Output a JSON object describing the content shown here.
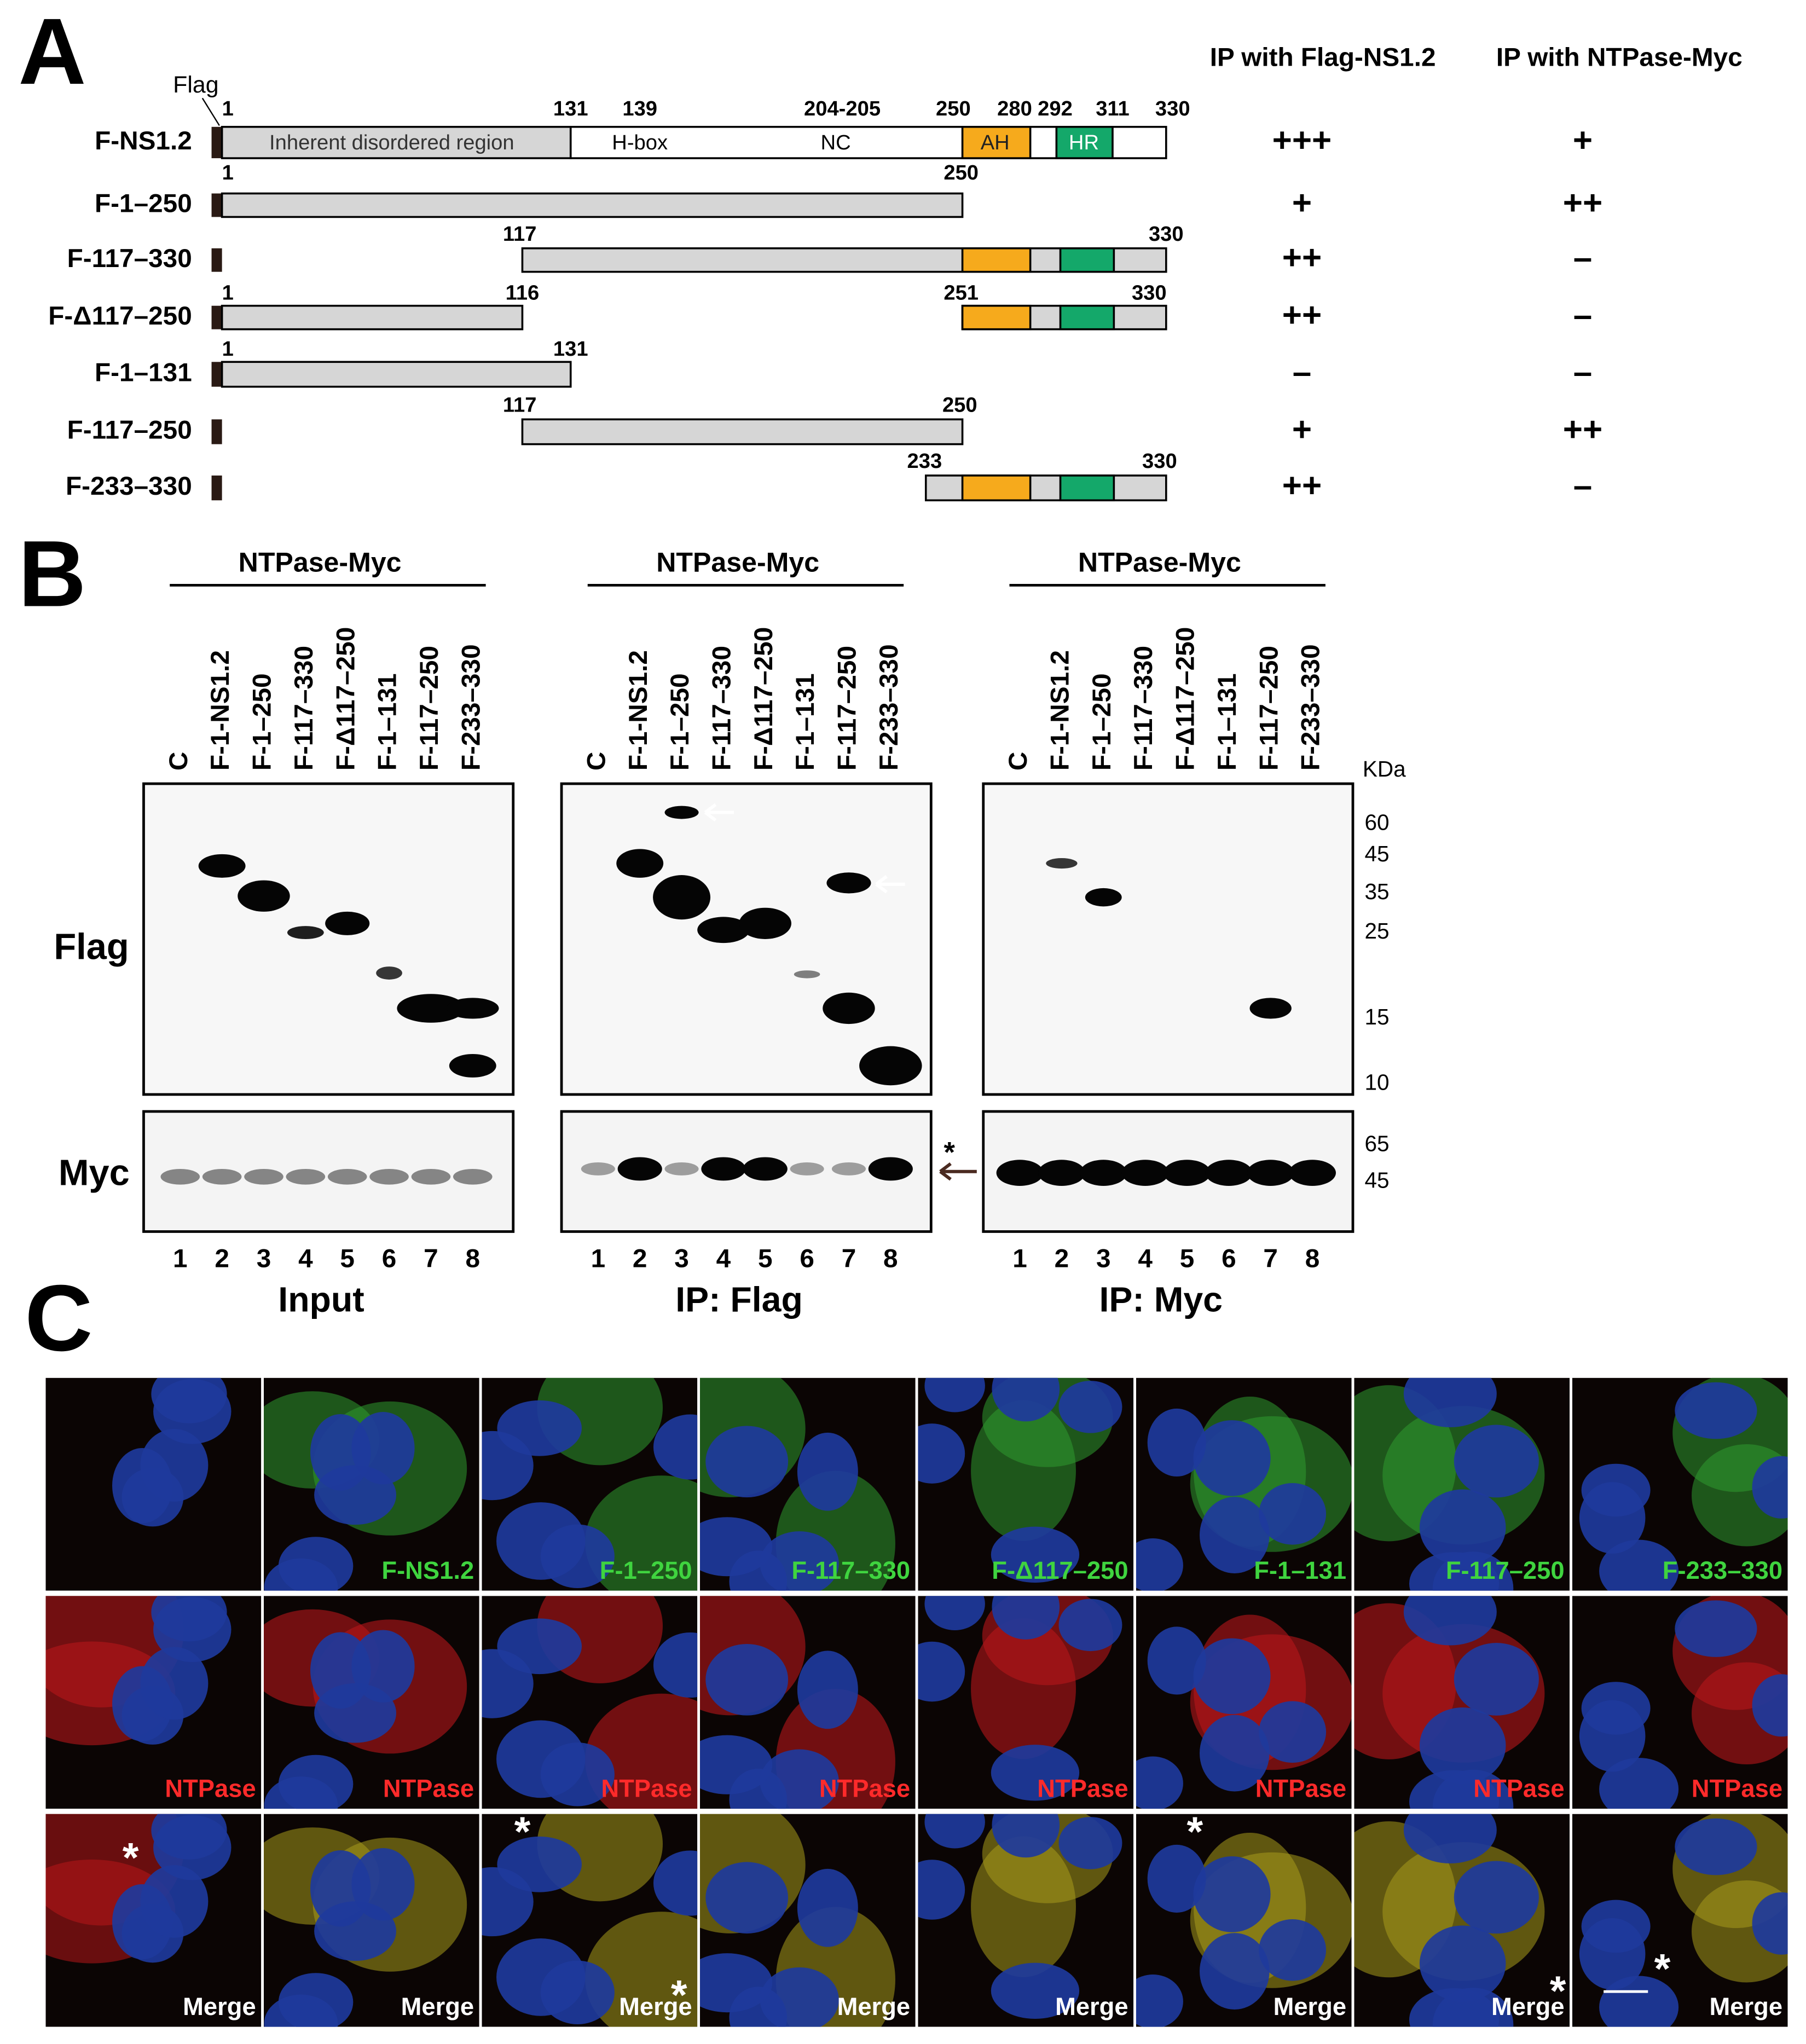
{
  "panel_a": {
    "label": "A",
    "flag_label": "Flag",
    "columns": [
      "IP with Flag-NS1.2",
      "IP with NTPase-Myc"
    ],
    "constructs": [
      {
        "name": "F-NS1.2",
        "positions": [
          "1",
          "131",
          "139",
          "204-205",
          "250",
          "280",
          "292",
          "311",
          "330"
        ],
        "regions": [
          "Inherent disordered region",
          "H-box",
          "NC",
          "AH",
          "HR"
        ],
        "scores": [
          "+++",
          "+"
        ]
      },
      {
        "name": "F-1–250",
        "positions": [
          "1",
          "250"
        ],
        "scores": [
          "+",
          "++"
        ]
      },
      {
        "name": "F-117–330",
        "positions": [
          "117",
          "330"
        ],
        "scores": [
          "++",
          "–"
        ]
      },
      {
        "name": "F-Δ117–250",
        "positions": [
          "1",
          "116",
          "251",
          "330"
        ],
        "scores": [
          "++",
          "–"
        ]
      },
      {
        "name": "F-1–131",
        "positions": [
          "1",
          "131"
        ],
        "scores": [
          "–",
          "–"
        ]
      },
      {
        "name": "F-117–250",
        "positions": [
          "117",
          "250"
        ],
        "scores": [
          "+",
          "++"
        ]
      },
      {
        "name": "F-233–330",
        "positions": [
          "233",
          "330"
        ],
        "scores": [
          "++",
          "–"
        ]
      }
    ]
  },
  "panel_b": {
    "label": "B",
    "row_labels": [
      "Flag",
      "Myc"
    ],
    "kda_label": "KDa",
    "flag_markers": [
      "60",
      "45",
      "35",
      "25",
      "15",
      "10"
    ],
    "myc_markers": [
      "65",
      "45"
    ],
    "asterisk": "*",
    "blots": [
      {
        "header": "NTPase-Myc",
        "title": "Input",
        "lanes": [
          "C",
          "F-1-NS1.2",
          "F-1–250",
          "F-117–330",
          "F-Δ117–250",
          "F-1–131",
          "F-117–250",
          "F-233–330"
        ],
        "lane_numbers": [
          "1",
          "2",
          "3",
          "4",
          "5",
          "6",
          "7",
          "8"
        ]
      },
      {
        "header": "NTPase-Myc",
        "title": "IP: Flag",
        "lanes": [
          "C",
          "F-1-NS1.2",
          "F-1–250",
          "F-117–330",
          "F-Δ117–250",
          "F-1–131",
          "F-117–250",
          "F-233–330"
        ],
        "lane_numbers": [
          "1",
          "2",
          "3",
          "4",
          "5",
          "6",
          "7",
          "8"
        ]
      },
      {
        "header": "NTPase-Myc",
        "title": "IP: Myc",
        "lanes": [
          "C",
          "F-1-NS1.2",
          "F-1–250",
          "F-117–330",
          "F-Δ117–250",
          "F-1–131",
          "F-117–250",
          "F-233–330"
        ],
        "lane_numbers": [
          "1",
          "2",
          "3",
          "4",
          "5",
          "6",
          "7",
          "8"
        ]
      }
    ]
  },
  "panel_c": {
    "label": "C",
    "constructs": [
      "F-NS1.2",
      "F-1–250",
      "F-117–330",
      "F-Δ117–250",
      "F-1–131",
      "F-117–250",
      "F-233–330"
    ],
    "channel_label": "NTPase",
    "merge_label": "Merge",
    "asterisk": "*"
  }
}
